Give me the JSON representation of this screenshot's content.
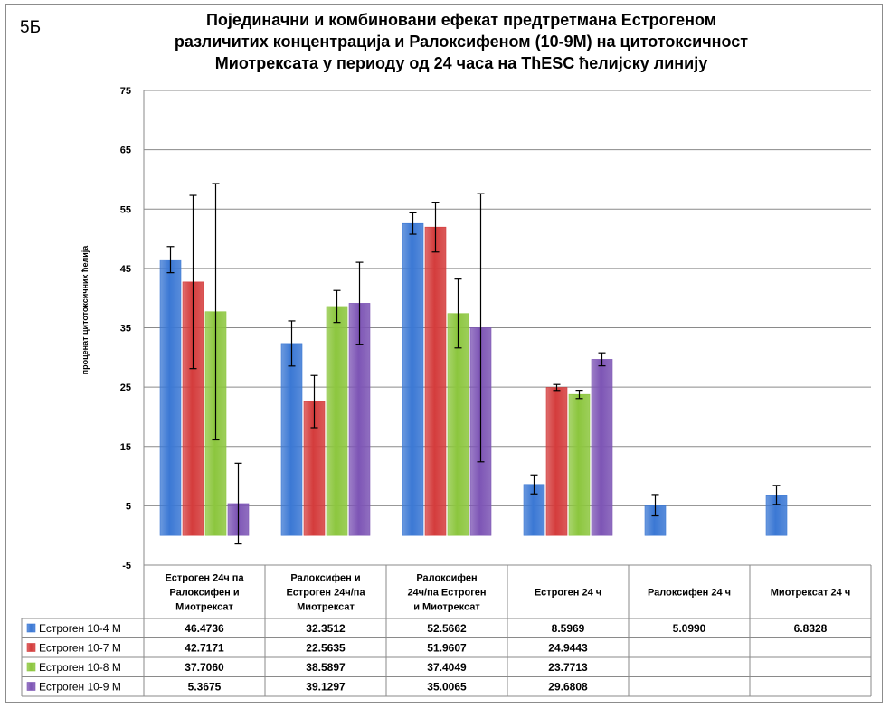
{
  "panel_label": "5Б",
  "chart_data": {
    "type": "bar",
    "title": [
      "Појединачни и комбиновани ефекат предтретмана Естрогеном",
      "различитих концентрација и Ралоксифеном (10-9М) на цитотоксичност",
      "Миотрексата у периоду од 24 часа на ThESC ћелијску линију"
    ],
    "ylabel": "проценат цитотоксичних ћелија",
    "xlabel": "",
    "ylim": [
      -5,
      75
    ],
    "yticks": [
      -5,
      5,
      15,
      25,
      35,
      45,
      55,
      65,
      75
    ],
    "grid": true,
    "legend_placement": "data-table",
    "categories": [
      [
        "Естроген 24ч па",
        "Ралоксифен и",
        "Миотрексат"
      ],
      [
        "Ралоксифен и",
        "Естроген 24ч/па",
        "Миотрексат"
      ],
      [
        "Ралоксифен",
        "24ч/па Естроген",
        "и Миотрексат"
      ],
      [
        "Естроген 24 ч"
      ],
      [
        "Ралоксифен 24 ч"
      ],
      [
        "Миотрексат 24 ч"
      ]
    ],
    "series": [
      {
        "name": "Естроген 10-4 М",
        "color": "#3b78d4",
        "values": [
          46.4736,
          32.3512,
          52.5662,
          8.5969,
          5.099,
          6.8328
        ],
        "labels": [
          "46.4736",
          "32.3512",
          "52.5662",
          "8.5969",
          "5.0990",
          "6.8328"
        ],
        "errors": [
          2.2,
          3.8,
          1.8,
          1.6,
          1.8,
          1.6
        ]
      },
      {
        "name": "Естроген 10-7 М",
        "color": "#d43c3c",
        "values": [
          42.7171,
          22.5635,
          51.9607,
          24.9443,
          null,
          null
        ],
        "labels": [
          "42.7171",
          "22.5635",
          "51.9607",
          "24.9443",
          "",
          ""
        ],
        "errors": [
          14.6,
          4.4,
          4.2,
          0.5,
          null,
          null
        ]
      },
      {
        "name": "Естроген 10-8 М",
        "color": "#8cc63e",
        "values": [
          37.706,
          38.5897,
          37.4049,
          23.7713,
          null,
          null
        ],
        "labels": [
          "37.7060",
          "38.5897",
          "37.4049",
          "23.7713",
          "",
          ""
        ],
        "errors": [
          21.6,
          2.7,
          5.8,
          0.7,
          null,
          null
        ]
      },
      {
        "name": "Естроген 10-9 М",
        "color": "#7d55b5",
        "values": [
          5.3675,
          39.1297,
          35.0065,
          29.6808,
          null,
          null
        ],
        "labels": [
          "5.3675",
          "39.1297",
          "35.0065",
          "29.6808",
          "",
          ""
        ],
        "errors": [
          6.8,
          6.9,
          22.6,
          1.1,
          null,
          null
        ]
      }
    ]
  }
}
